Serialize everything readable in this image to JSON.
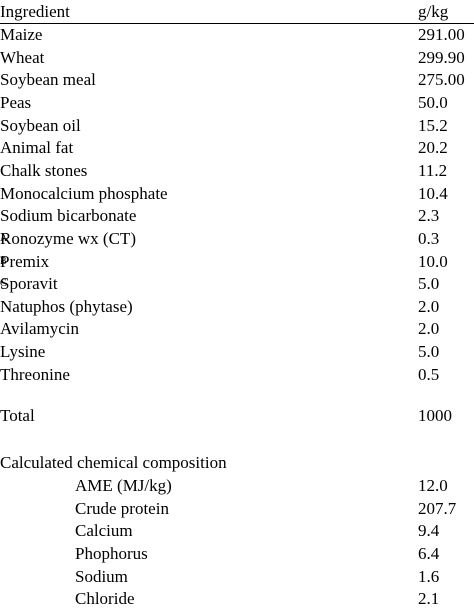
{
  "header": {
    "ingredient": "Ingredient",
    "unit": "g/kg"
  },
  "rows": [
    {
      "name": "Maize",
      "value": "291.00"
    },
    {
      "name": "Wheat",
      "value": "299.90"
    },
    {
      "name": "Soybean meal",
      "value": "275.00"
    },
    {
      "name": "Peas",
      "value": "50.0"
    },
    {
      "name": "Soybean oil",
      "value": "15.2"
    },
    {
      "name": "Animal fat",
      "value": "20.2"
    },
    {
      "name": "Chalk stones",
      "value": "11.2"
    },
    {
      "name": "Monocalcium phosphate",
      "value": "10.4"
    },
    {
      "name": "Sodium bicarbonate",
      "value": "2.3"
    },
    {
      "name": "Ronozyme wx (CT)",
      "sup": "A",
      "value": "0.3"
    },
    {
      "name": "Premix",
      "sup": "B",
      "value": "10.0"
    },
    {
      "name": "Sporavit",
      "sup": "C",
      "value": "5.0"
    },
    {
      "name": "Natuphos (phytase)",
      "value": "2.0"
    },
    {
      "name": "Avilamycin",
      "value": "2.0"
    },
    {
      "name": "Lysine",
      "value": "5.0"
    },
    {
      "name": "Threonine",
      "value": "0.5"
    }
  ],
  "total": {
    "name": "Total",
    "value": "1000"
  },
  "composition": {
    "title": "Calculated chemical composition",
    "rows": [
      {
        "name": "AME (MJ/kg)",
        "value": "12.0"
      },
      {
        "name": "Crude protein",
        "value": "207.7"
      },
      {
        "name": "Calcium",
        "value": "9.4"
      },
      {
        "name": "Phophorus",
        "value": "6.4"
      },
      {
        "name": "Sodium",
        "value": "1.6"
      },
      {
        "name": "Chloride",
        "value": "2.1"
      }
    ]
  }
}
